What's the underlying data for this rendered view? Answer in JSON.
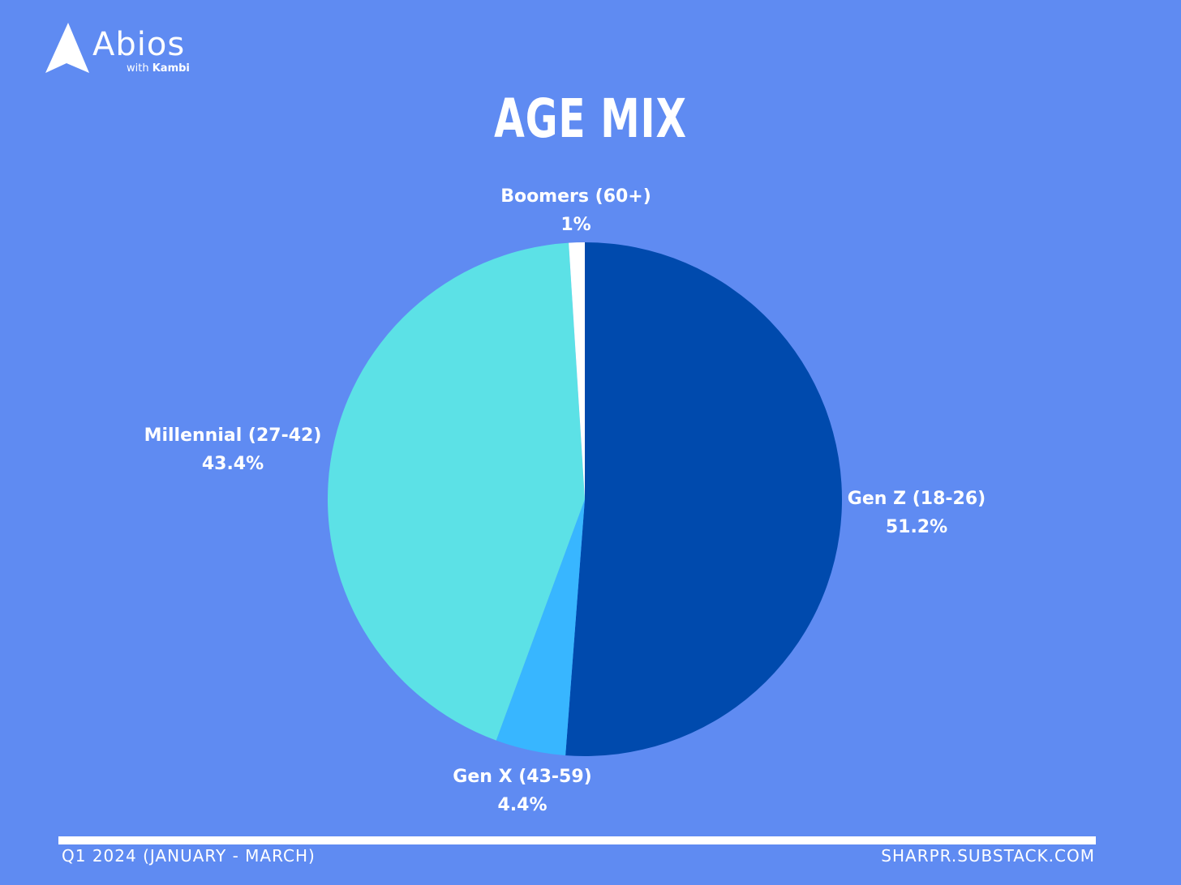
{
  "brand": {
    "name": "Abios",
    "sub_prefix": "with",
    "sub_name": "Kambi"
  },
  "title": "AGE MIX",
  "chart_data": {
    "type": "pie",
    "title": "AGE MIX",
    "slices": [
      {
        "label": "Gen Z (18-26)",
        "value": 51.2,
        "value_label": "51.2%",
        "color": "#004aad"
      },
      {
        "label": "Gen X (43-59)",
        "value": 4.4,
        "value_label": "4.4%",
        "color": "#38b6ff"
      },
      {
        "label": "Millennial (27-42)",
        "value": 43.4,
        "value_label": "43.4%",
        "color": "#5ce1e6"
      },
      {
        "label": "Boomers (60+)",
        "value": 1,
        "value_label": "1%",
        "color": "#ffffff"
      }
    ],
    "start_angle": "12 o'clock",
    "direction": "clockwise",
    "legend": "none"
  },
  "footer": {
    "left": "Q1 2024 (JANUARY - MARCH)",
    "right": "SHARPR.SUBSTACK.COM"
  }
}
